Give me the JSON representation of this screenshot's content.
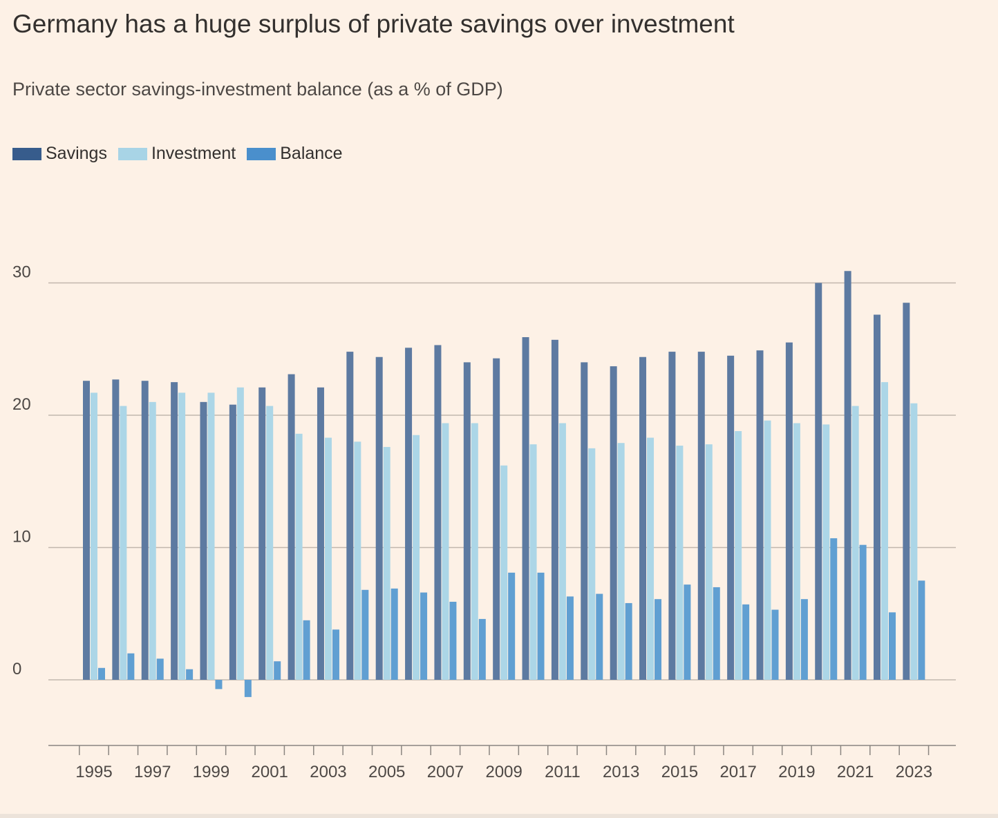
{
  "title": "Germany has a huge surplus of private savings over investment",
  "subtitle": "Private sector savings-investment balance (as a % of GDP)",
  "legend": [
    {
      "name": "Savings",
      "color": "#375c8c"
    },
    {
      "name": "Investment",
      "color": "#a8d4e6"
    },
    {
      "name": "Balance",
      "color": "#4a8fcc"
    }
  ],
  "chart_data": {
    "type": "bar",
    "categories": [
      "1995",
      "1996",
      "1997",
      "1998",
      "1999",
      "2000",
      "2001",
      "2002",
      "2003",
      "2004",
      "2005",
      "2006",
      "2007",
      "2008",
      "2009",
      "2010",
      "2011",
      "2012",
      "2013",
      "2014",
      "2015",
      "2016",
      "2017",
      "2018",
      "2019",
      "2020",
      "2021",
      "2022",
      "2023"
    ],
    "x_tick_labels": [
      "1995",
      "1997",
      "1999",
      "2001",
      "2003",
      "2005",
      "2007",
      "2009",
      "2011",
      "2013",
      "2015",
      "2017",
      "2019",
      "2021",
      "2023"
    ],
    "series": [
      {
        "name": "Savings",
        "color": "#5d7aa1",
        "values": [
          22.6,
          22.7,
          22.6,
          22.5,
          21.0,
          20.8,
          22.1,
          23.1,
          22.1,
          24.8,
          24.4,
          25.1,
          25.3,
          24.0,
          24.3,
          25.9,
          25.7,
          24.0,
          23.7,
          24.4,
          24.8,
          24.8,
          24.5,
          24.9,
          25.5,
          30.0,
          30.9,
          27.6,
          28.5
        ]
      },
      {
        "name": "Investment",
        "color": "#acd6e7",
        "values": [
          21.7,
          20.7,
          21.0,
          21.7,
          21.7,
          22.1,
          20.7,
          18.6,
          18.3,
          18.0,
          17.6,
          18.5,
          19.4,
          19.4,
          16.2,
          17.8,
          19.4,
          17.5,
          17.9,
          18.3,
          17.7,
          17.8,
          18.8,
          19.6,
          19.4,
          19.3,
          20.7,
          22.5,
          20.9
        ]
      },
      {
        "name": "Balance",
        "color": "#609fd2",
        "values": [
          0.9,
          2.0,
          1.6,
          0.8,
          -0.7,
          -1.3,
          1.4,
          4.5,
          3.8,
          6.8,
          6.9,
          6.6,
          5.9,
          4.6,
          8.1,
          8.1,
          6.3,
          6.5,
          5.8,
          6.1,
          7.2,
          7.0,
          5.7,
          5.3,
          6.1,
          10.7,
          10.2,
          5.1,
          7.5
        ]
      }
    ],
    "y_ticks": [
      0,
      10,
      20,
      30
    ],
    "ylim": [
      -5,
      35
    ],
    "grid": true,
    "legend_position": "top-left"
  }
}
